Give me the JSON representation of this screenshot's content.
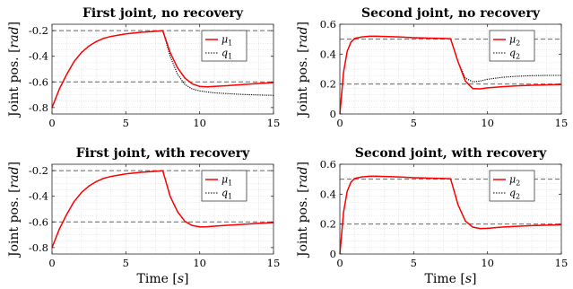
{
  "figure": {
    "xlabel": "Time [s]",
    "ylabel": "Joint pos. [rad]",
    "style": {
      "mu_color": "#ff0000",
      "q_color": "#000000",
      "ref_color": "#666666",
      "grid": true,
      "legend_placement": "top-right"
    }
  },
  "chart_data": [
    {
      "type": "line",
      "title": "First joint, no recovery",
      "xlim": [
        0,
        15
      ],
      "ylim": [
        -0.85,
        -0.15
      ],
      "xticks": [
        0,
        5,
        10,
        15
      ],
      "yticks": [
        -0.8,
        -0.6,
        -0.4,
        -0.2
      ],
      "ytick_labels": [
        "-0.8",
        "-0.6",
        "-0.4",
        "-0.2"
      ],
      "references": [
        -0.2,
        -0.6
      ],
      "legend": [
        "μ1",
        "q1"
      ],
      "series": [
        {
          "name": "μ1",
          "x": [
            0,
            0.5,
            1,
            1.5,
            2,
            2.5,
            3,
            3.5,
            4,
            5,
            6,
            7,
            7.5,
            8,
            8.5,
            9,
            9.5,
            10,
            10.5,
            11,
            12,
            13,
            14,
            15
          ],
          "y": [
            -0.8,
            -0.655,
            -0.54,
            -0.44,
            -0.37,
            -0.32,
            -0.285,
            -0.26,
            -0.245,
            -0.225,
            -0.213,
            -0.205,
            -0.2,
            -0.37,
            -0.49,
            -0.57,
            -0.615,
            -0.635,
            -0.638,
            -0.635,
            -0.628,
            -0.62,
            -0.612,
            -0.605
          ]
        },
        {
          "name": "q1",
          "x": [
            0,
            0.5,
            1,
            1.5,
            2,
            2.5,
            3,
            3.5,
            4,
            5,
            6,
            7,
            7.5,
            8,
            8.5,
            9,
            9.5,
            10,
            10.5,
            11,
            12,
            13,
            14,
            15
          ],
          "y": [
            -0.8,
            -0.655,
            -0.54,
            -0.44,
            -0.37,
            -0.32,
            -0.285,
            -0.26,
            -0.245,
            -0.225,
            -0.213,
            -0.205,
            -0.2,
            -0.4,
            -0.54,
            -0.62,
            -0.655,
            -0.67,
            -0.678,
            -0.685,
            -0.692,
            -0.698,
            -0.702,
            -0.705
          ]
        }
      ]
    },
    {
      "type": "line",
      "title": "Second joint, no recovery",
      "xlim": [
        0,
        15
      ],
      "ylim": [
        0,
        0.6
      ],
      "xticks": [
        0,
        5,
        10,
        15
      ],
      "yticks": [
        0,
        0.2,
        0.4,
        0.6
      ],
      "ytick_labels": [
        "0",
        "0.2",
        "0.4",
        "0.6"
      ],
      "references": [
        0.5,
        0.2
      ],
      "legend": [
        "μ2",
        "q2"
      ],
      "series": [
        {
          "name": "μ2",
          "x": [
            0,
            0.25,
            0.5,
            0.75,
            1,
            1.5,
            2,
            2.5,
            3,
            4,
            5,
            6,
            7,
            7.5,
            8,
            8.5,
            9,
            9.5,
            10,
            11,
            12,
            13,
            14,
            15
          ],
          "y": [
            0,
            0.28,
            0.42,
            0.48,
            0.505,
            0.515,
            0.52,
            0.52,
            0.518,
            0.515,
            0.51,
            0.507,
            0.505,
            0.503,
            0.35,
            0.22,
            0.17,
            0.168,
            0.175,
            0.182,
            0.188,
            0.192,
            0.195,
            0.197
          ]
        },
        {
          "name": "q2",
          "x": [
            0,
            0.25,
            0.5,
            0.75,
            1,
            1.5,
            2,
            2.5,
            3,
            4,
            5,
            6,
            7,
            7.5,
            8,
            8.5,
            9,
            9.5,
            10,
            11,
            12,
            13,
            14,
            15
          ],
          "y": [
            0,
            0.28,
            0.42,
            0.48,
            0.505,
            0.515,
            0.52,
            0.52,
            0.518,
            0.515,
            0.51,
            0.507,
            0.505,
            0.503,
            0.35,
            0.24,
            0.215,
            0.22,
            0.232,
            0.245,
            0.252,
            0.256,
            0.258,
            0.258
          ]
        }
      ]
    },
    {
      "type": "line",
      "title": "First joint, with recovery",
      "xlim": [
        0,
        15
      ],
      "ylim": [
        -0.85,
        -0.15
      ],
      "xticks": [
        0,
        5,
        10,
        15
      ],
      "yticks": [
        -0.8,
        -0.6,
        -0.4,
        -0.2
      ],
      "ytick_labels": [
        "-0.8",
        "-0.6",
        "-0.4",
        "-0.2"
      ],
      "references": [
        -0.2,
        -0.6
      ],
      "legend": [
        "μ1",
        "q1"
      ],
      "series": [
        {
          "name": "μ1",
          "x": [
            0,
            0.5,
            1,
            1.5,
            2,
            2.5,
            3,
            3.5,
            4,
            5,
            6,
            7,
            7.5,
            8,
            8.5,
            9,
            9.5,
            10,
            10.5,
            11,
            12,
            13,
            14,
            15
          ],
          "y": [
            -0.8,
            -0.655,
            -0.54,
            -0.44,
            -0.37,
            -0.32,
            -0.285,
            -0.26,
            -0.245,
            -0.225,
            -0.213,
            -0.205,
            -0.2,
            -0.4,
            -0.52,
            -0.595,
            -0.628,
            -0.638,
            -0.637,
            -0.633,
            -0.625,
            -0.618,
            -0.611,
            -0.605
          ]
        },
        {
          "name": "q1",
          "x": [
            0,
            0.5,
            1,
            1.5,
            2,
            2.5,
            3,
            3.5,
            4,
            5,
            6,
            7,
            7.5,
            8,
            8.5,
            9,
            9.5,
            10,
            10.5,
            11,
            12,
            13,
            14,
            15
          ],
          "y": [
            -0.8,
            -0.655,
            -0.54,
            -0.44,
            -0.37,
            -0.32,
            -0.285,
            -0.26,
            -0.245,
            -0.225,
            -0.213,
            -0.205,
            -0.2,
            -0.4,
            -0.52,
            -0.595,
            -0.628,
            -0.638,
            -0.637,
            -0.633,
            -0.625,
            -0.618,
            -0.611,
            -0.605
          ]
        }
      ]
    },
    {
      "type": "line",
      "title": "Second joint, with recovery",
      "xlim": [
        0,
        15
      ],
      "ylim": [
        0,
        0.6
      ],
      "xticks": [
        0,
        5,
        10,
        15
      ],
      "yticks": [
        0,
        0.2,
        0.4,
        0.6
      ],
      "ytick_labels": [
        "0",
        "0.2",
        "0.4",
        "0.6"
      ],
      "references": [
        0.5,
        0.2
      ],
      "legend": [
        "μ2",
        "q2"
      ],
      "series": [
        {
          "name": "μ2",
          "x": [
            0,
            0.25,
            0.5,
            0.75,
            1,
            1.5,
            2,
            2.5,
            3,
            4,
            5,
            6,
            7,
            7.5,
            8,
            8.5,
            9,
            9.5,
            10,
            11,
            12,
            13,
            14,
            15
          ],
          "y": [
            0,
            0.28,
            0.42,
            0.48,
            0.505,
            0.515,
            0.52,
            0.52,
            0.518,
            0.515,
            0.51,
            0.507,
            0.505,
            0.503,
            0.33,
            0.22,
            0.18,
            0.17,
            0.172,
            0.18,
            0.185,
            0.19,
            0.193,
            0.196
          ]
        },
        {
          "name": "q2",
          "x": [
            0,
            0.25,
            0.5,
            0.75,
            1,
            1.5,
            2,
            2.5,
            3,
            4,
            5,
            6,
            7,
            7.5,
            8,
            8.5,
            9,
            9.5,
            10,
            11,
            12,
            13,
            14,
            15
          ],
          "y": [
            0,
            0.28,
            0.42,
            0.48,
            0.505,
            0.515,
            0.52,
            0.52,
            0.518,
            0.515,
            0.51,
            0.507,
            0.505,
            0.503,
            0.33,
            0.22,
            0.18,
            0.17,
            0.172,
            0.18,
            0.185,
            0.19,
            0.193,
            0.196
          ]
        }
      ]
    }
  ]
}
